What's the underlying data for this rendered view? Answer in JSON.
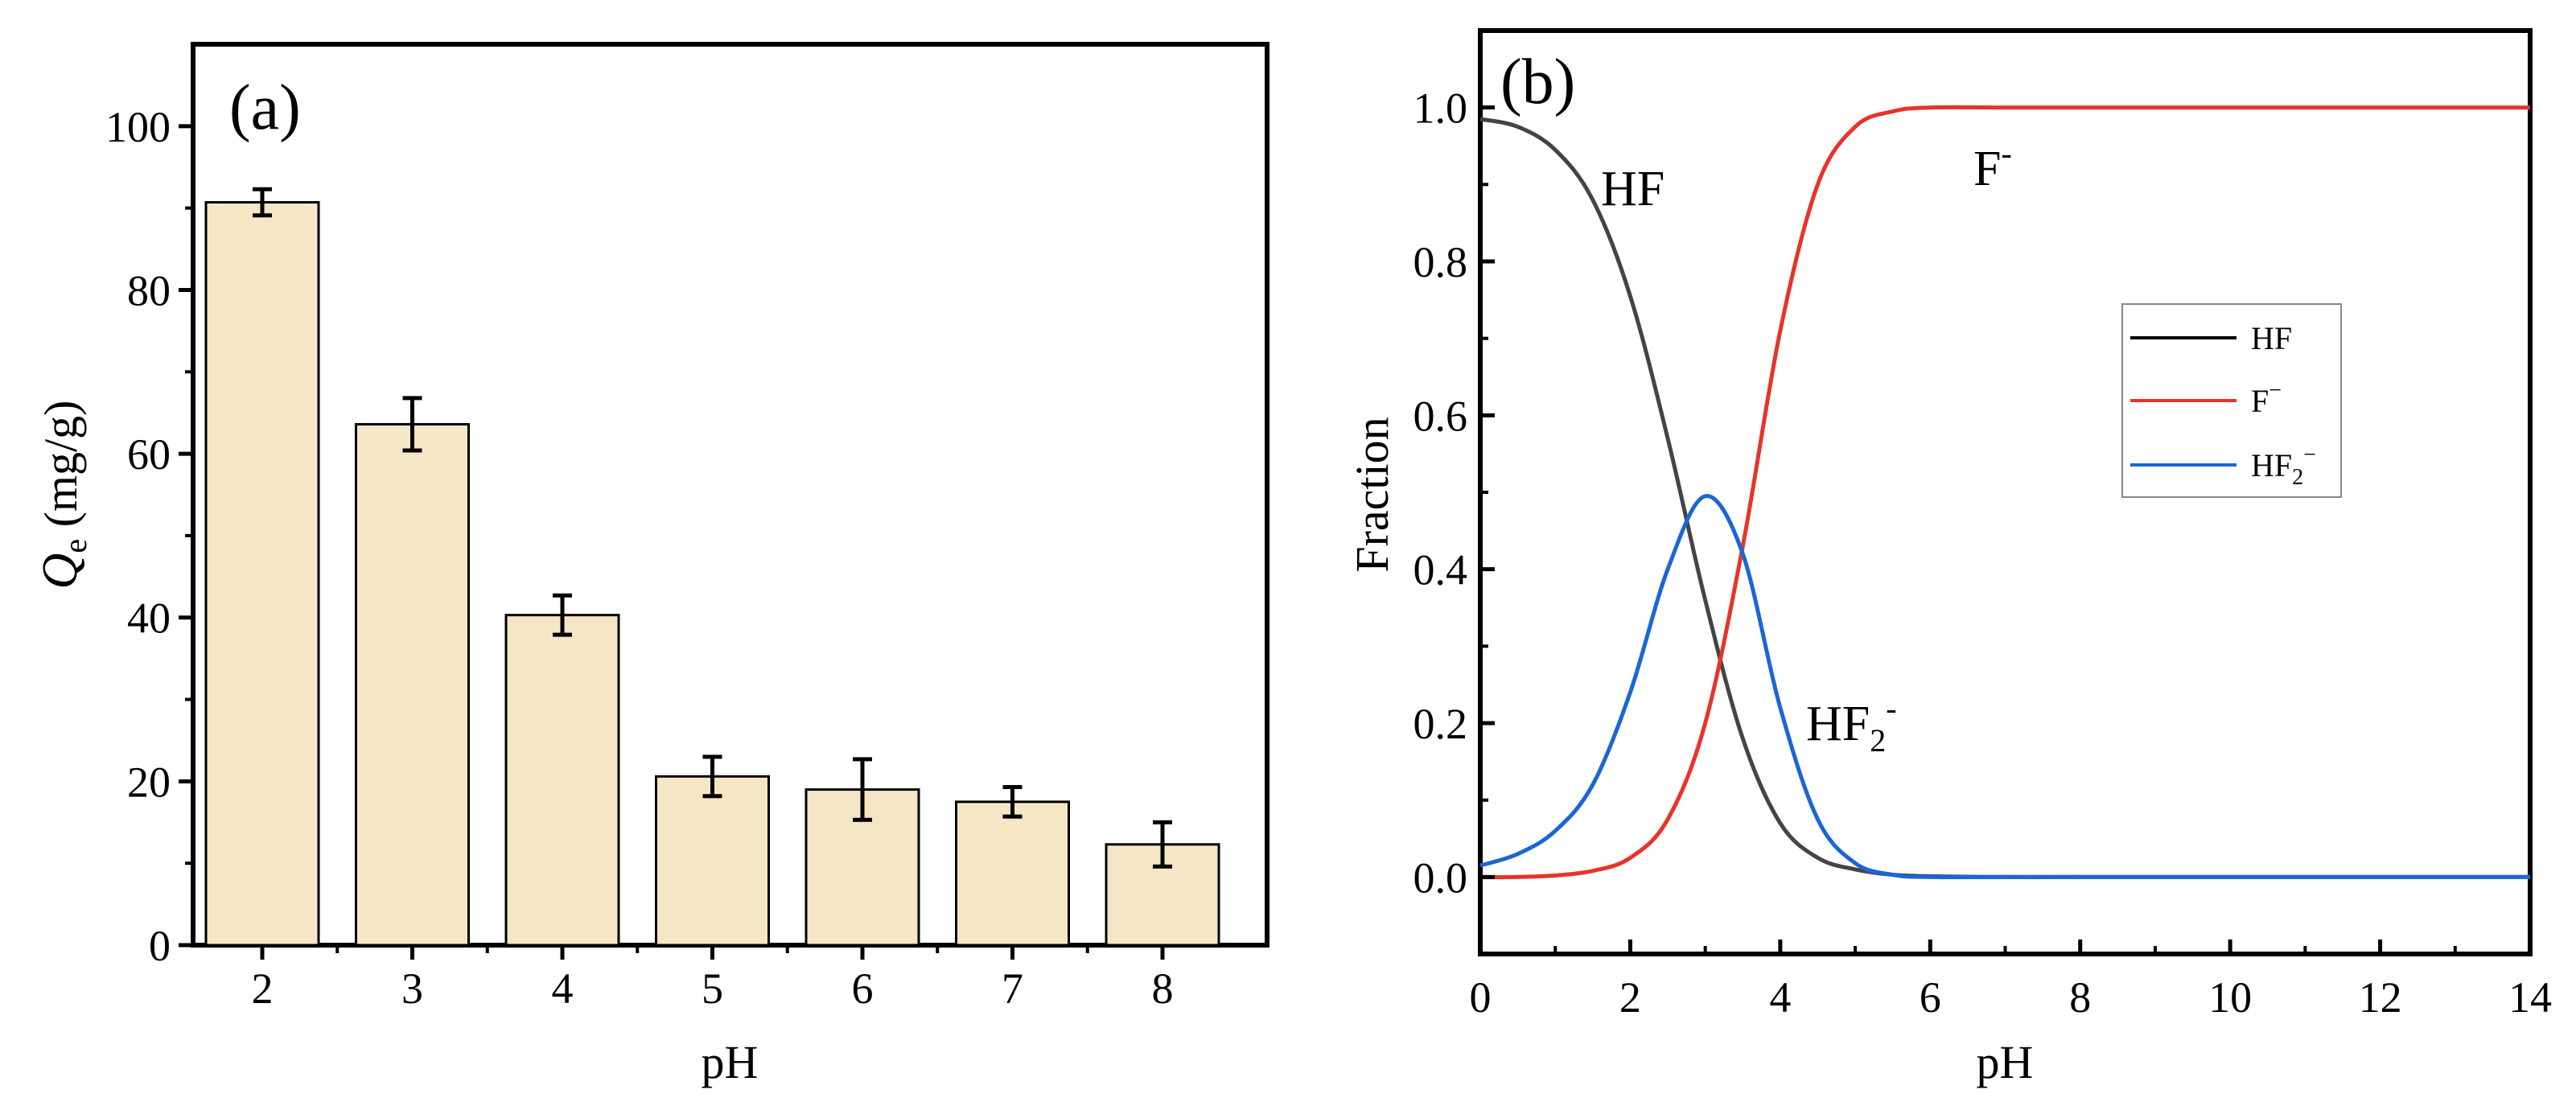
{
  "figure": {
    "panels": [
      "(a)",
      "(b)"
    ]
  },
  "chart_data": [
    {
      "type": "bar",
      "panel_label": "(a)",
      "title": "",
      "xlabel": "pH",
      "ylabel_main": "Q",
      "ylabel_sub": "e",
      "ylabel_unit": " (mg/g)",
      "categories": [
        "2",
        "3",
        "4",
        "5",
        "6",
        "7",
        "8"
      ],
      "values": [
        90.7,
        63.6,
        40.3,
        20.6,
        19.0,
        17.5,
        12.3
      ],
      "errors": [
        1.6,
        3.2,
        2.4,
        2.4,
        3.7,
        1.8,
        2.7
      ],
      "ylim": [
        0,
        110
      ],
      "yticks": [
        0,
        20,
        40,
        60,
        80,
        100
      ],
      "bar_color": "#f5e6c6",
      "edge_color": "#000000"
    },
    {
      "type": "line",
      "panel_label": "(b)",
      "title": "",
      "xlabel": "pH",
      "ylabel": "Fraction",
      "xlim": [
        0,
        14
      ],
      "ylim": [
        -0.1,
        1.1
      ],
      "xticks": [
        0,
        2,
        4,
        6,
        8,
        10,
        12,
        14
      ],
      "yticks": [
        0.0,
        0.2,
        0.4,
        0.6,
        0.8,
        1.0
      ],
      "ytick_labels": [
        "0.0",
        "0.2",
        "0.4",
        "0.6",
        "0.8",
        "1.0"
      ],
      "series": [
        {
          "name": "HF",
          "color": "#444444",
          "x": [
            0,
            0.5,
            1.0,
            1.5,
            2.0,
            2.5,
            3.0,
            3.5,
            4.0,
            4.5,
            5.0,
            5.5,
            6.0,
            7.0,
            8.0,
            10.0,
            12.0,
            14.0
          ],
          "y": [
            0.985,
            0.975,
            0.945,
            0.88,
            0.755,
            0.57,
            0.36,
            0.18,
            0.07,
            0.025,
            0.01,
            0.003,
            0.001,
            0.0,
            0.0,
            0.0,
            0.0,
            0.0
          ]
        },
        {
          "name": "F⁻",
          "color": "#e8332a",
          "x": [
            0,
            0.5,
            1.0,
            1.5,
            2.0,
            2.5,
            3.0,
            3.5,
            4.0,
            4.5,
            5.0,
            5.5,
            6.0,
            7.0,
            8.0,
            10.0,
            12.0,
            14.0
          ],
          "y": [
            0.0,
            0.0,
            0.002,
            0.008,
            0.025,
            0.075,
            0.2,
            0.43,
            0.71,
            0.9,
            0.975,
            0.995,
            1.0,
            1.0,
            1.0,
            1.0,
            1.0,
            1.0
          ],
          "annotation": "F"
        },
        {
          "name": "HF₂⁻",
          "color": "#1a66d6",
          "x": [
            0,
            0.5,
            1.0,
            1.5,
            2.0,
            2.5,
            3.0,
            3.5,
            4.0,
            4.5,
            5.0,
            5.5,
            6.0,
            7.0,
            8.0,
            10.0,
            12.0,
            14.0
          ],
          "y": [
            0.015,
            0.03,
            0.06,
            0.12,
            0.24,
            0.4,
            0.495,
            0.42,
            0.22,
            0.075,
            0.018,
            0.003,
            0.0,
            0.0,
            0.0,
            0.0,
            0.0,
            0.0
          ]
        }
      ],
      "annotations": {
        "HF": "HF",
        "F": "F",
        "F_sup": "-",
        "HF2": "HF",
        "HF2_sub": "2",
        "HF2_sup": "-"
      },
      "legend": {
        "position": "center-right",
        "entries": [
          {
            "label": "HF",
            "sub": "",
            "sup": "",
            "color": "#000000"
          },
          {
            "label": "F",
            "sub": "",
            "sup": "−",
            "color": "#e8332a"
          },
          {
            "label": "HF",
            "sub": "2",
            "sup": "−",
            "color": "#1a66d6"
          }
        ]
      }
    }
  ]
}
